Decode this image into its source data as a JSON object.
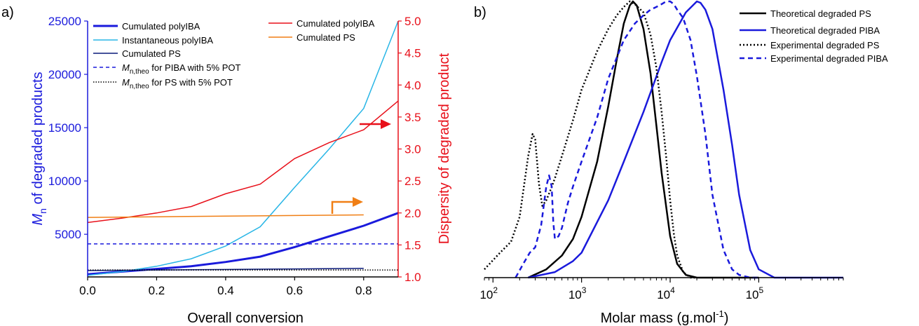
{
  "chart_data": [
    {
      "panel": "a)",
      "type": "line",
      "xlabel": "Overall conversion",
      "xlim": [
        0.0,
        0.9
      ],
      "xticks": [
        "0.0",
        "0.2",
        "0.4",
        "0.6",
        "0.8"
      ],
      "ylabel_left_main": "M",
      "ylabel_left_sub": "n",
      "ylabel_left_rest": " of degraded products",
      "ylim_left": [
        1000,
        25000
      ],
      "yticks_left": [
        "5000",
        "10000",
        "15000",
        "20000",
        "25000"
      ],
      "ylabel_right": "Dispersity of degraded product",
      "ylim_right": [
        1.0,
        5.0
      ],
      "yticks_right": [
        "1.0",
        "1.5",
        "2.0",
        "2.5",
        "3.0",
        "3.5",
        "4.0",
        "4.5",
        "5.0"
      ],
      "left_series": [
        {
          "name": "Cumulated polyIBA",
          "color": "#1a1adc",
          "dash": "solid",
          "x": [
            0.0,
            0.1,
            0.2,
            0.3,
            0.4,
            0.5,
            0.6,
            0.7,
            0.8,
            0.9
          ],
          "y": [
            1250,
            1500,
            1750,
            2000,
            2400,
            2900,
            3800,
            4800,
            5800,
            7000
          ]
        },
        {
          "name": "Instantaneous polyIBA",
          "color": "#29b6e6",
          "dash": "solid",
          "x": [
            0.0,
            0.1,
            0.2,
            0.3,
            0.4,
            0.5,
            0.6,
            0.7,
            0.8,
            0.9
          ],
          "y": [
            1150,
            1500,
            2000,
            2700,
            3900,
            5700,
            9400,
            13000,
            16800,
            25000
          ]
        },
        {
          "name": "Cumulated PS",
          "color": "#0a1a7a",
          "dash": "solid",
          "x": [
            0.0,
            0.2,
            0.4,
            0.6,
            0.8
          ],
          "y": [
            1600,
            1650,
            1700,
            1750,
            1800
          ]
        },
        {
          "name_main": "M",
          "name_sub": "n,theo",
          "name_rest": " for PIBA with 5% POT",
          "color": "#1a1adc",
          "dash": "dashed",
          "x": [
            0.0,
            0.9
          ],
          "y": [
            4100,
            4100
          ]
        },
        {
          "name_main": "M",
          "name_sub": "n,theo",
          "name_rest": " for PS with 5% POT",
          "color": "#000000",
          "dash": "dotted",
          "x": [
            0.0,
            0.9
          ],
          "y": [
            1650,
            1650
          ]
        }
      ],
      "right_series": [
        {
          "name": "Cumulated polyIBA",
          "color": "#e8101a",
          "dash": "solid",
          "x": [
            0.0,
            0.1,
            0.2,
            0.3,
            0.4,
            0.5,
            0.6,
            0.7,
            0.8,
            0.9
          ],
          "y": [
            1.85,
            1.92,
            2.0,
            2.1,
            2.3,
            2.45,
            2.85,
            3.1,
            3.3,
            3.75
          ]
        },
        {
          "name": "Cumulated PS",
          "color": "#f07f15",
          "dash": "solid",
          "x": [
            0.0,
            0.2,
            0.4,
            0.6,
            0.8
          ],
          "y": [
            1.93,
            1.94,
            1.95,
            1.96,
            1.97
          ]
        }
      ]
    },
    {
      "panel": "b)",
      "type": "line",
      "xlabel_main": "Molar mass (g.mol",
      "xlabel_sup": "-1",
      "xlabel_end": ")",
      "xscale": "log",
      "xlim": [
        80,
        900000
      ],
      "xtick_base": [
        "10",
        "10",
        "10",
        "10"
      ],
      "xtick_exp": [
        "2",
        "3",
        "4",
        "5"
      ],
      "ylim": [
        0,
        1.0
      ],
      "legend_position": "top-right",
      "series": [
        {
          "name": "Theoretical degraded PS",
          "color": "#000000",
          "dash": "solid",
          "x": [
            250,
            400,
            600,
            800,
            1000,
            1500,
            2000,
            2500,
            3000,
            3500,
            3800,
            4200,
            5000,
            6000,
            7000,
            8000,
            10000,
            12000,
            15000,
            20000,
            100000
          ],
          "y": [
            0.0,
            0.03,
            0.08,
            0.14,
            0.22,
            0.42,
            0.62,
            0.79,
            0.92,
            0.985,
            1.0,
            0.985,
            0.9,
            0.74,
            0.55,
            0.38,
            0.15,
            0.05,
            0.01,
            0.0,
            0.0
          ]
        },
        {
          "name": "Theoretical degraded PIBA",
          "color": "#1a1adc",
          "dash": "solid",
          "x": [
            250,
            500,
            800,
            1000,
            2000,
            3000,
            5000,
            8000,
            10000,
            15000,
            20000,
            22000,
            25000,
            30000,
            40000,
            50000,
            60000,
            80000,
            100000,
            150000,
            900000
          ],
          "y": [
            0.0,
            0.02,
            0.06,
            0.09,
            0.28,
            0.42,
            0.6,
            0.78,
            0.86,
            0.96,
            1.0,
            0.995,
            0.97,
            0.9,
            0.68,
            0.48,
            0.3,
            0.1,
            0.03,
            0.0,
            0.0
          ]
        },
        {
          "name": "Experimental degraded PS",
          "color": "#000000",
          "dash": "dotted",
          "x": [
            80,
            120,
            160,
            200,
            250,
            280,
            300,
            330,
            360,
            400,
            450,
            500,
            600,
            800,
            1000,
            1500,
            2000,
            2500,
            3000,
            3500,
            4000,
            5000,
            6000,
            7000,
            8000,
            9000,
            10000,
            11000,
            12000,
            14000,
            17000,
            20000
          ],
          "y": [
            0.03,
            0.09,
            0.13,
            0.22,
            0.44,
            0.52,
            0.5,
            0.34,
            0.26,
            0.28,
            0.32,
            0.36,
            0.44,
            0.57,
            0.68,
            0.82,
            0.9,
            0.95,
            0.98,
            1.0,
            0.99,
            0.96,
            0.88,
            0.76,
            0.6,
            0.44,
            0.28,
            0.16,
            0.08,
            0.02,
            0.0,
            0.0
          ]
        },
        {
          "name": "Experimental degraded PIBA",
          "color": "#1a1adc",
          "dash": "dashed",
          "x": [
            180,
            220,
            260,
            300,
            350,
            400,
            430,
            460,
            480,
            500,
            550,
            600,
            700,
            800,
            1000,
            1500,
            2000,
            3000,
            4000,
            5000,
            6000,
            7000,
            8000,
            9000,
            10000,
            11000,
            12000,
            14000,
            17000,
            20000,
            25000,
            30000,
            40000,
            50000,
            60000,
            80000,
            100000
          ],
          "y": [
            0.0,
            0.05,
            0.09,
            0.11,
            0.19,
            0.33,
            0.37,
            0.33,
            0.2,
            0.14,
            0.15,
            0.18,
            0.27,
            0.33,
            0.42,
            0.58,
            0.72,
            0.86,
            0.92,
            0.95,
            0.97,
            0.98,
            0.99,
            1.0,
            1.0,
            0.99,
            0.97,
            0.94,
            0.86,
            0.73,
            0.52,
            0.3,
            0.1,
            0.03,
            0.01,
            0.0,
            0.0
          ]
        }
      ]
    }
  ]
}
